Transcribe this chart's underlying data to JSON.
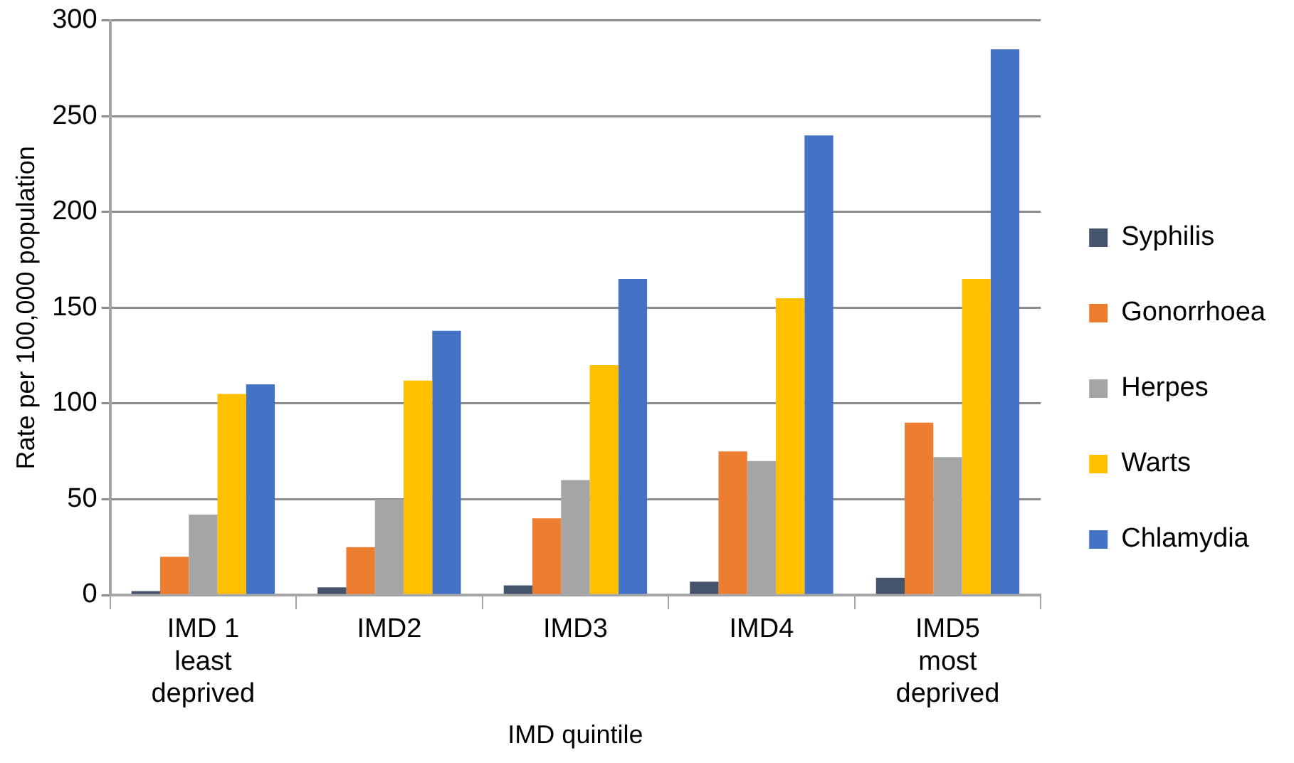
{
  "chart_data": {
    "type": "bar",
    "xlabel": "IMD quintile",
    "ylabel": "Rate per 100,000 population",
    "categories": [
      "IMD 1 least deprived",
      "IMD2",
      "IMD3",
      "IMD4",
      "IMD5 most deprived"
    ],
    "series": [
      {
        "name": "Syphilis",
        "color": "#44546a",
        "values": [
          2,
          4,
          5,
          7,
          9
        ]
      },
      {
        "name": "Gonorrhoea",
        "color": "#ed7d31",
        "values": [
          20,
          25,
          40,
          75,
          90
        ]
      },
      {
        "name": "Herpes",
        "color": "#a5a5a5",
        "values": [
          42,
          50,
          60,
          70,
          72
        ]
      },
      {
        "name": "Warts",
        "color": "#ffc000",
        "values": [
          105,
          112,
          120,
          155,
          165
        ]
      },
      {
        "name": "Chlamydia",
        "color": "#4472c4",
        "values": [
          110,
          138,
          165,
          240,
          285
        ]
      }
    ],
    "ylim": [
      0,
      300
    ],
    "yticks": [
      0,
      50,
      100,
      150,
      200,
      250,
      300
    ],
    "grid": "y",
    "legend": "right"
  }
}
